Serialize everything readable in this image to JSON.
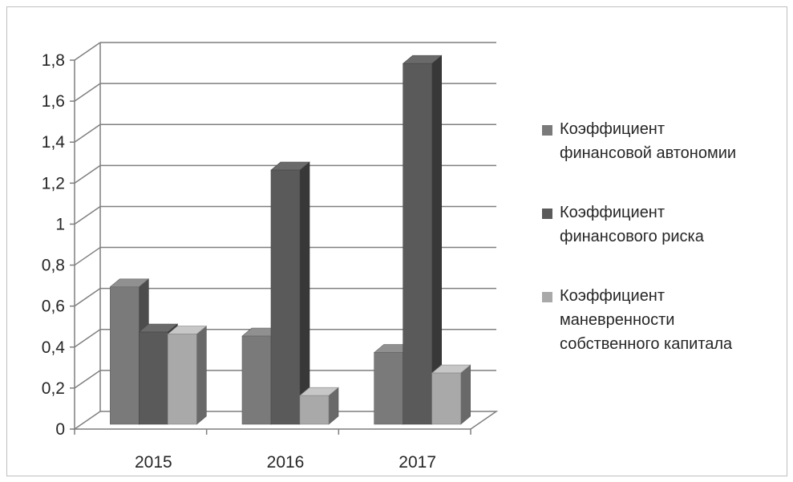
{
  "chart_data": {
    "type": "bar",
    "categories": [
      "2015",
      "2016",
      "2017"
    ],
    "series": [
      {
        "name": "Коэффициент финансовой автономии",
        "values": [
          0.67,
          0.43,
          0.35
        ],
        "color": "#7a7a7a"
      },
      {
        "name": "Коэффициент финансового риска",
        "values": [
          0.45,
          1.24,
          1.76
        ],
        "color": "#5a5a5a"
      },
      {
        "name": "Коэффициент маневренности собственного капитала",
        "values": [
          0.44,
          0.14,
          0.25
        ],
        "color": "#a9a9a9"
      }
    ],
    "ylim": [
      0,
      1.8
    ],
    "yticks": [
      "0",
      "0,2",
      "0,4",
      "0,6",
      "0,8",
      "1",
      "1,2",
      "1,4",
      "1,6",
      "1,8"
    ],
    "grid": true,
    "legend": "right",
    "style": "3d-clustered-column"
  },
  "legend": {
    "items": [
      {
        "line1": "Коэффициент",
        "line2": "финансовой автономии"
      },
      {
        "line1": "Коэффициент",
        "line2": "финансового риска"
      },
      {
        "line1": "Коэффициент",
        "line2": "маневренности",
        "line3": "собственного капитала"
      }
    ]
  }
}
